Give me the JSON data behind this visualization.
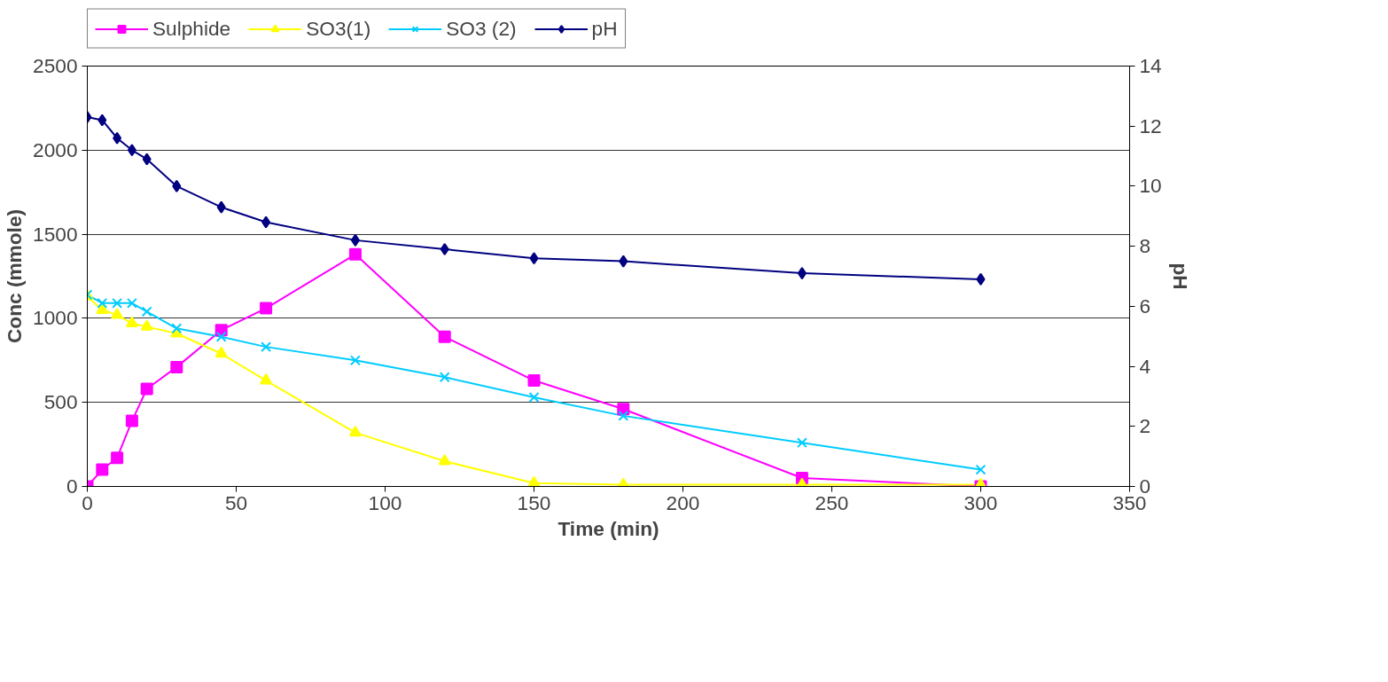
{
  "chart_data": {
    "type": "line",
    "xlabel": "Time (min)",
    "ylabel": "Conc (mmole)",
    "y2label": "pH",
    "x": [
      0,
      5,
      10,
      15,
      20,
      30,
      45,
      60,
      90,
      120,
      150,
      180,
      240,
      300
    ],
    "xlim": [
      0,
      350
    ],
    "xticks": [
      0,
      50,
      100,
      150,
      200,
      250,
      300,
      350
    ],
    "ylim": [
      0,
      2500
    ],
    "yticks": [
      0,
      500,
      1000,
      1500,
      2000,
      2500
    ],
    "y2lim": [
      0,
      14
    ],
    "y2ticks": [
      0,
      2,
      4,
      6,
      8,
      10,
      12,
      14
    ],
    "grid": "y",
    "legend": "top",
    "line_style": "solid",
    "series": [
      {
        "name": "Sulphide",
        "color": "#ff00ff",
        "marker": "square",
        "values": [
          0,
          100,
          170,
          390,
          580,
          710,
          930,
          1060,
          1380,
          890,
          630,
          460,
          50,
          0
        ]
      },
      {
        "name": "SO3(1)",
        "color": "#ffff00",
        "marker": "triangle",
        "values": [
          1130,
          1050,
          1020,
          970,
          950,
          910,
          790,
          630,
          320,
          150,
          20,
          10,
          10,
          10
        ]
      },
      {
        "name": "SO3 (2)",
        "color": "#00ccff",
        "marker": "cross",
        "values": [
          1140,
          1090,
          1090,
          1090,
          1040,
          940,
          890,
          830,
          750,
          650,
          530,
          420,
          260,
          100
        ]
      },
      {
        "name": "pH",
        "color": "#000080",
        "marker": "diamond",
        "axis": "y2",
        "values": [
          12.3,
          12.2,
          11.6,
          11.2,
          10.9,
          10.0,
          9.3,
          8.8,
          8.2,
          7.9,
          7.6,
          7.5,
          7.1,
          6.9
        ]
      }
    ]
  }
}
